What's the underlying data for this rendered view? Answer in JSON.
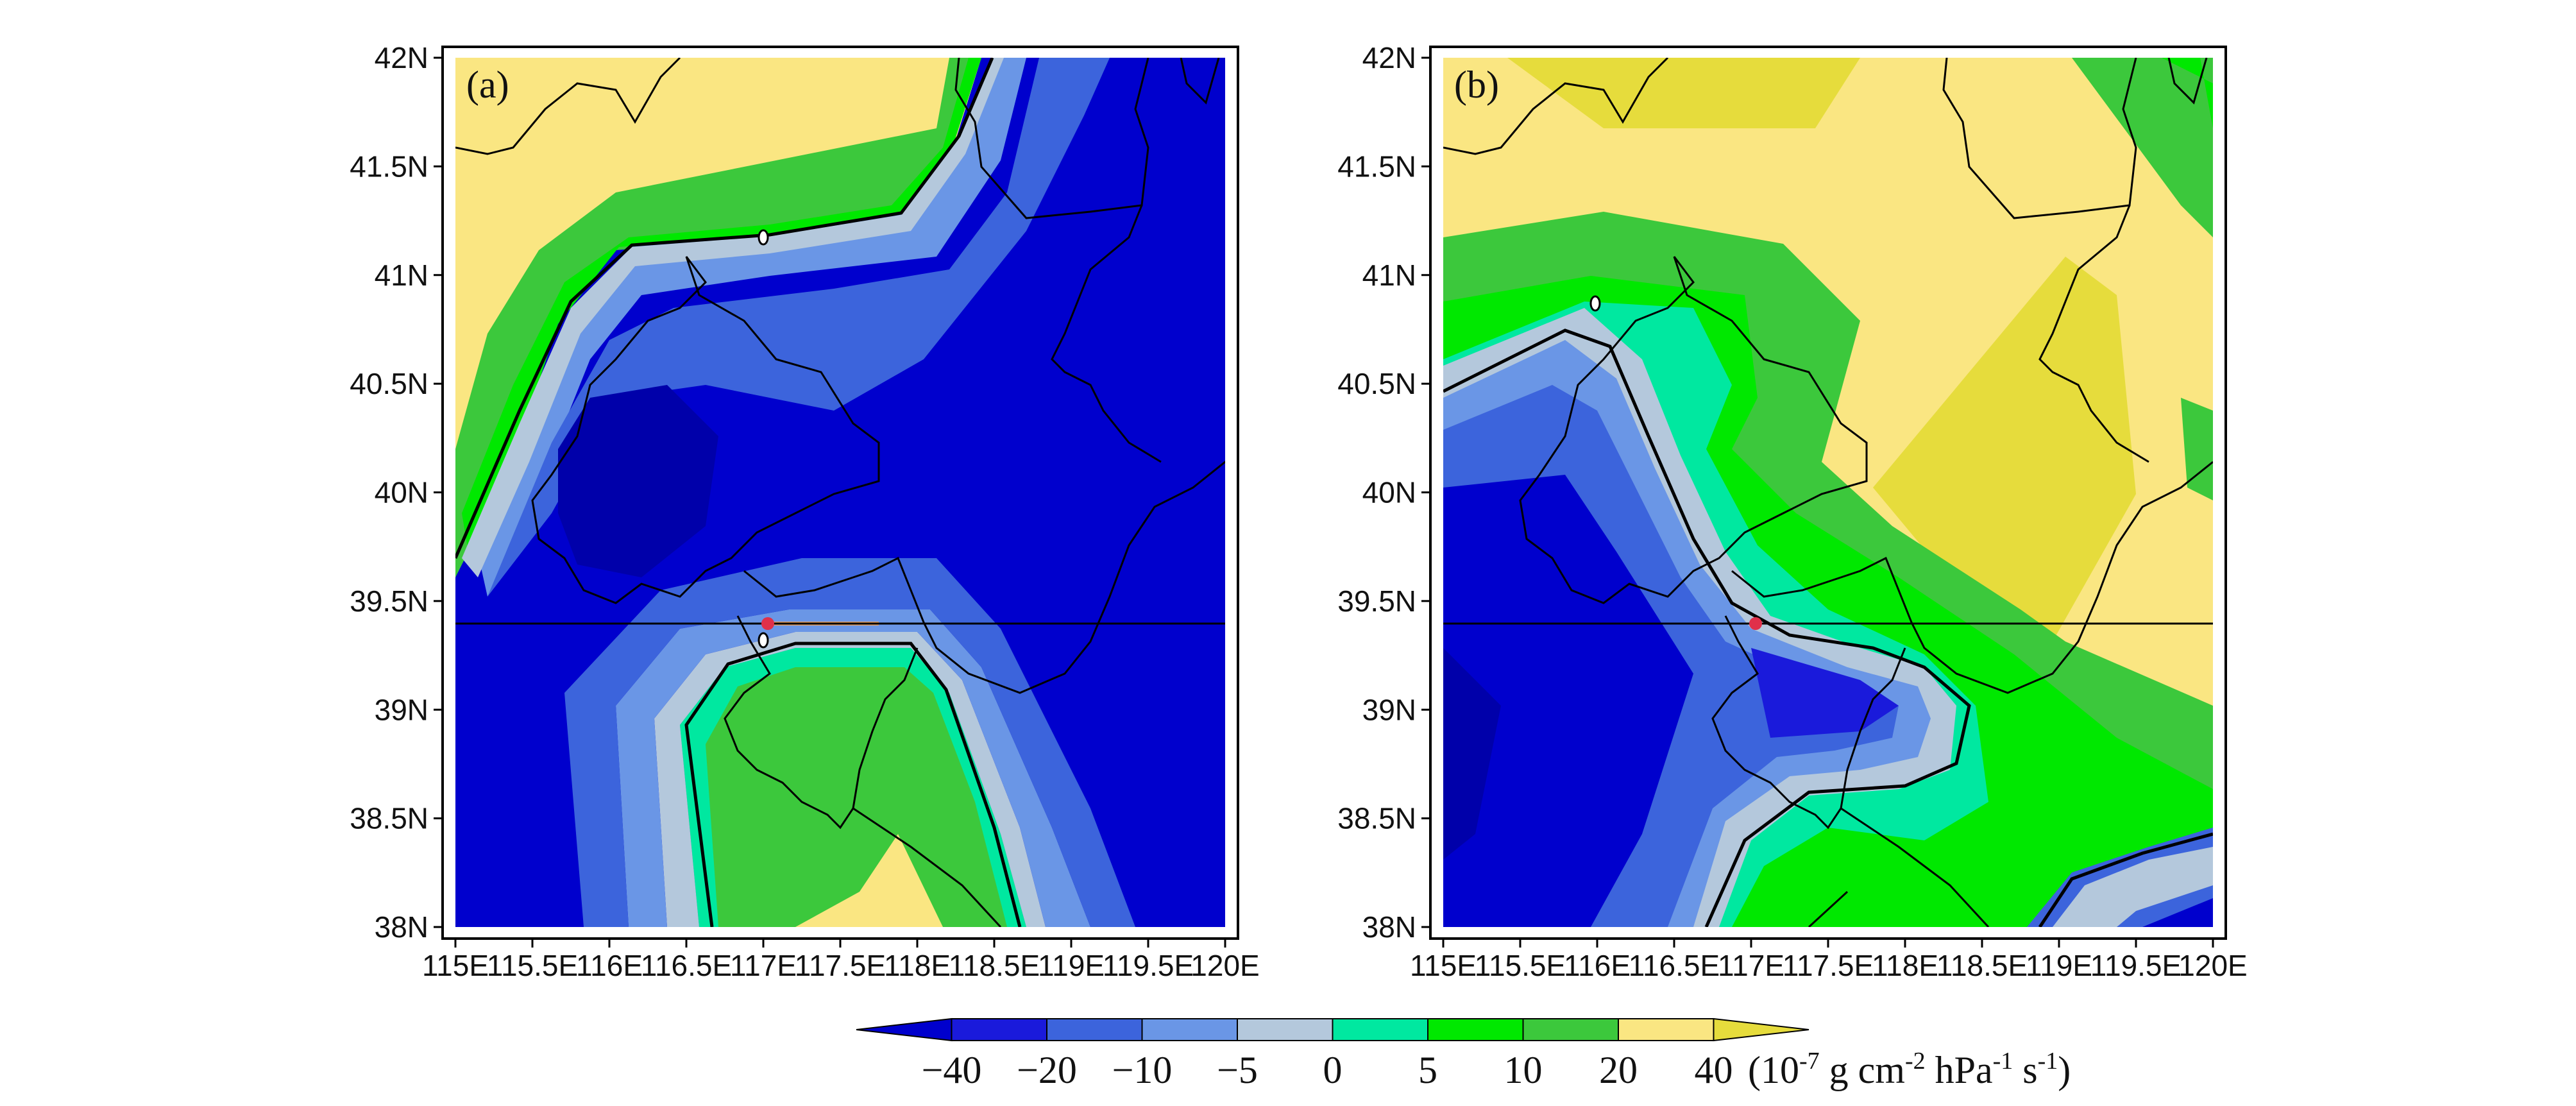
{
  "figure": {
    "panels": [
      {
        "label": "(a)",
        "contour_label": "0"
      },
      {
        "label": "(b)",
        "contour_label": "0"
      }
    ],
    "lat_ticks": [
      "42N",
      "41.5N",
      "41N",
      "40.5N",
      "40N",
      "39.5N",
      "39N",
      "38.5N",
      "38N"
    ],
    "lon_ticks": [
      "115E",
      "115.5E",
      "116E",
      "116.5E",
      "117E",
      "117.5E",
      "118E",
      "118.5E",
      "119E",
      "119.5E",
      "120E"
    ],
    "reference_latitude": "39.4N",
    "marker_color": "#e0304a"
  },
  "colorbar": {
    "levels": [
      "−40",
      "−20",
      "−10",
      "−5",
      "0",
      "5",
      "10",
      "20",
      "40"
    ],
    "colors": [
      "#0000cd",
      "#1a1adb",
      "#3c64dc",
      "#6a96e6",
      "#b4c8dc",
      "#00e8a0",
      "#00e800",
      "#3cc83c",
      "#fae682",
      "#e6dc3c"
    ],
    "units_prefix": "(10",
    "units_exp1": "-7",
    "units_mid": " g cm",
    "units_exp2": "-2",
    "units_mid2": " hPa",
    "units_exp3": "-1",
    "units_mid3": " s",
    "units_exp4": "-1",
    "units_suffix": ")"
  }
}
